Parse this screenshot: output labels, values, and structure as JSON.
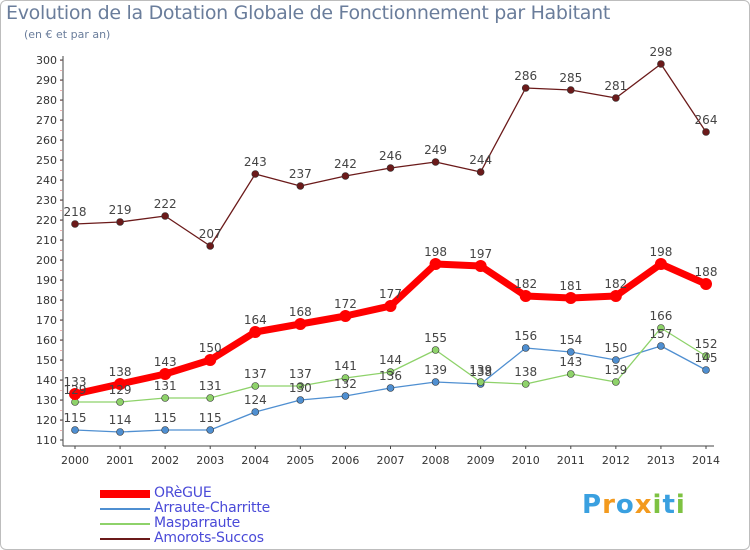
{
  "header": {
    "title": "Evolution de la Dotation Globale de Fonctionnement par Habitant",
    "subtitle": "(en € et par an)"
  },
  "chart_data": {
    "type": "line",
    "title": "Evolution de la Dotation Globale de Fonctionnement par Habitant",
    "subtitle": "(en € et par an)",
    "xlabel": "",
    "ylabel": "",
    "x": [
      "2000",
      "2001",
      "2002",
      "2003",
      "2004",
      "2005",
      "2006",
      "2007",
      "2008",
      "2009",
      "2010",
      "2011",
      "2012",
      "2013",
      "2014"
    ],
    "ylim": [
      110,
      300
    ],
    "yticks": [
      110,
      120,
      130,
      140,
      150,
      160,
      170,
      180,
      190,
      200,
      210,
      220,
      230,
      240,
      250,
      260,
      270,
      280,
      290,
      300
    ],
    "grid": false,
    "legend_position": "bottom-left",
    "series": [
      {
        "name": "ORèGUE",
        "color": "#ff0000",
        "values": [
          133,
          138,
          143,
          150,
          164,
          168,
          172,
          177,
          198,
          197,
          182,
          181,
          182,
          198,
          188
        ]
      },
      {
        "name": "Arraute-Charritte",
        "color": "#4f8fd1",
        "values": [
          115,
          114,
          115,
          115,
          124,
          130,
          132,
          136,
          139,
          138,
          156,
          154,
          150,
          157,
          145
        ]
      },
      {
        "name": "Masparraute",
        "color": "#8ed26a",
        "values": [
          129,
          129,
          131,
          131,
          137,
          137,
          141,
          144,
          155,
          139,
          138,
          143,
          139,
          166,
          152
        ]
      },
      {
        "name": "Amorots-Succos",
        "color": "#6b1a1a",
        "values": [
          218,
          219,
          222,
          207,
          243,
          237,
          242,
          246,
          249,
          244,
          286,
          285,
          281,
          298,
          264
        ]
      }
    ]
  },
  "logo": {
    "letters": [
      "P",
      "r",
      "o",
      "x",
      "i",
      "t",
      "i"
    ],
    "colors": [
      "#3aa0e0",
      "#f39a1e",
      "#3aa0e0",
      "#f39a1e",
      "#7ec242",
      "#3aa0e0",
      "#7ec242"
    ]
  }
}
